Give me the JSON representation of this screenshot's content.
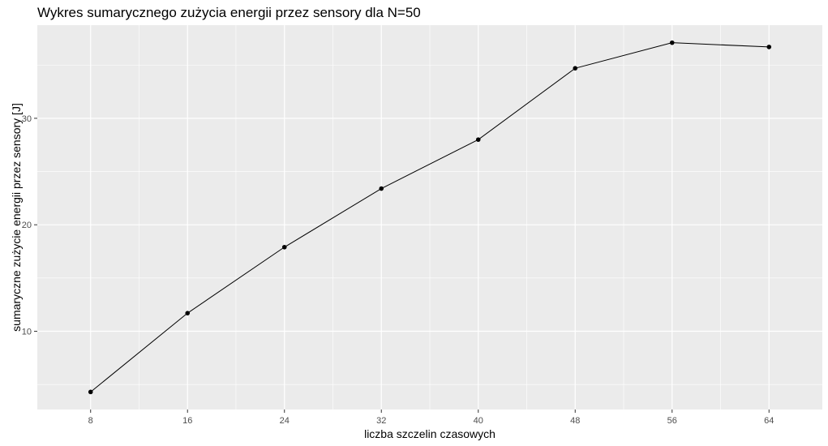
{
  "chart_data": {
    "type": "line",
    "title": "Wykres sumarycznego zużycia energii przez sensory dla N=50",
    "xlabel": "liczba szczelin czasowych",
    "ylabel": "sumaryczne zużycie energii przez sensory [J]",
    "x": [
      8,
      16,
      24,
      32,
      40,
      48,
      56,
      64
    ],
    "series": [
      {
        "values": [
          4.3,
          11.7,
          17.9,
          23.4,
          28.0,
          34.7,
          37.1,
          36.7
        ]
      }
    ],
    "xlim": [
      3.6,
      68.4
    ],
    "ylim": [
      2.65,
      38.75
    ],
    "x_ticks": [
      "8",
      "16",
      "24",
      "32",
      "40",
      "48",
      "56",
      "64"
    ],
    "y_ticks": [
      "10",
      "20",
      "30"
    ],
    "grid": true,
    "colors": {
      "panel": "#ebebeb",
      "grid": "#ffffff",
      "line": "#000000",
      "point": "#000000"
    }
  }
}
